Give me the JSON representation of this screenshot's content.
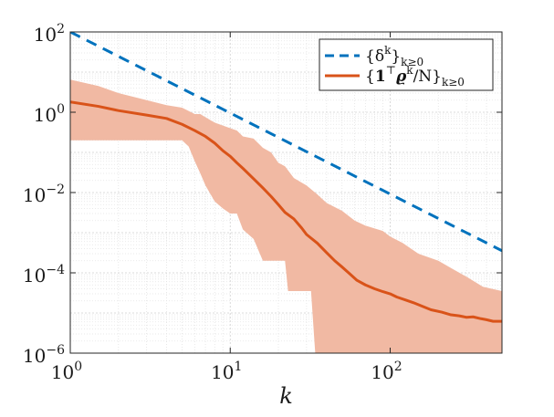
{
  "chart_data": {
    "type": "line",
    "title": "",
    "xlabel": "k",
    "ylabel": "",
    "xscale": "log",
    "yscale": "log",
    "xlim": [
      1,
      500
    ],
    "ylim": [
      1e-06,
      100
    ],
    "grid": true,
    "legend_position": "top-right",
    "x_ticks": [
      {
        "value": 1,
        "base": "10",
        "exp": "0"
      },
      {
        "value": 10,
        "base": "10",
        "exp": "1"
      },
      {
        "value": 100,
        "base": "10",
        "exp": "2"
      }
    ],
    "y_ticks": [
      {
        "value": 1e-06,
        "base": "10",
        "exp": "−6"
      },
      {
        "value": 0.0001,
        "base": "10",
        "exp": "−4"
      },
      {
        "value": 0.01,
        "base": "10",
        "exp": "−2"
      },
      {
        "value": 1,
        "base": "10",
        "exp": "0"
      },
      {
        "value": 100,
        "base": "10",
        "exp": "2"
      }
    ],
    "series": [
      {
        "name": "{δ^k}_{k≥0}",
        "style": "dashed",
        "color": "#0072BD",
        "points": [
          [
            1,
            100
          ],
          [
            500,
            0.000355
          ]
        ]
      },
      {
        "name": "{1^⊤ϱ^k/N}_{k≥0}",
        "style": "solid",
        "color": "#D95319",
        "points": [
          [
            1,
            1.8
          ],
          [
            1.5,
            1.4
          ],
          [
            2,
            1.1
          ],
          [
            3,
            0.85
          ],
          [
            4,
            0.7
          ],
          [
            5,
            0.5
          ],
          [
            6,
            0.35
          ],
          [
            7,
            0.25
          ],
          [
            8,
            0.17
          ],
          [
            9,
            0.11
          ],
          [
            10,
            0.08
          ],
          [
            11,
            0.055
          ],
          [
            12,
            0.04
          ],
          [
            14,
            0.022
          ],
          [
            16,
            0.013
          ],
          [
            18,
            0.008
          ],
          [
            20,
            0.005
          ],
          [
            22,
            0.0032
          ],
          [
            25,
            0.0022
          ],
          [
            28,
            0.0013
          ],
          [
            30,
            0.0009
          ],
          [
            35,
            0.00055
          ],
          [
            40,
            0.00032
          ],
          [
            45,
            0.0002
          ],
          [
            50,
            0.00014
          ],
          [
            55,
            0.0001
          ],
          [
            62,
            6.5e-05
          ],
          [
            70,
            5e-05
          ],
          [
            80,
            4e-05
          ],
          [
            90,
            3.4e-05
          ],
          [
            100,
            3e-05
          ],
          [
            110,
            2.5e-05
          ],
          [
            125,
            2.1e-05
          ],
          [
            140,
            1.8e-05
          ],
          [
            160,
            1.45e-05
          ],
          [
            180,
            1.2e-05
          ],
          [
            210,
            1.05e-05
          ],
          [
            240,
            9e-06
          ],
          [
            270,
            8.5e-06
          ],
          [
            300,
            7.8e-06
          ],
          [
            330,
            8e-06
          ],
          [
            370,
            7.2e-06
          ],
          [
            400,
            6.8e-06
          ],
          [
            440,
            6.2e-06
          ],
          [
            500,
            6.2e-06
          ]
        ],
        "band": {
          "color": "#F1B9A3",
          "upper": [
            [
              1,
              6.5
            ],
            [
              1.5,
              4.5
            ],
            [
              2,
              3.0
            ],
            [
              3,
              2.0
            ],
            [
              4,
              1.5
            ],
            [
              5,
              1.3
            ],
            [
              6,
              0.9
            ],
            [
              6.5,
              0.9
            ],
            [
              7,
              0.75
            ],
            [
              8,
              0.55
            ],
            [
              10,
              0.4
            ],
            [
              11,
              0.35
            ],
            [
              12,
              0.25
            ],
            [
              14,
              0.22
            ],
            [
              16,
              0.13
            ],
            [
              18,
              0.1
            ],
            [
              20,
              0.055
            ],
            [
              22,
              0.045
            ],
            [
              25,
              0.023
            ],
            [
              30,
              0.015
            ],
            [
              35,
              0.009
            ],
            [
              40,
              0.0055
            ],
            [
              50,
              0.0035
            ],
            [
              60,
              0.002
            ],
            [
              70,
              0.0015
            ],
            [
              90,
              0.0011
            ],
            [
              100,
              0.0008
            ],
            [
              120,
              0.00055
            ],
            [
              150,
              0.0003
            ],
            [
              200,
              0.0002
            ],
            [
              250,
              0.00012
            ],
            [
              300,
              8e-05
            ],
            [
              380,
              4.5e-05
            ],
            [
              500,
              3.5e-05
            ]
          ],
          "lower": [
            [
              1,
              0.2
            ],
            [
              4,
              0.2
            ],
            [
              5,
              0.2
            ],
            [
              5.5,
              0.14
            ],
            [
              6,
              0.06
            ],
            [
              6.5,
              0.03
            ],
            [
              7,
              0.015
            ],
            [
              8,
              0.006
            ],
            [
              9,
              0.004
            ],
            [
              10,
              0.003
            ],
            [
              11,
              0.003
            ],
            [
              12,
              0.0012
            ],
            [
              14,
              0.0007
            ],
            [
              16,
              0.0002
            ],
            [
              20,
              0.0002
            ],
            [
              22,
              0.0002
            ],
            [
              23,
              3.5e-05
            ],
            [
              28,
              3.5e-05
            ],
            [
              32,
              3.5e-05
            ],
            [
              34,
              1e-06
            ],
            [
              500,
              1e-06
            ]
          ]
        }
      }
    ]
  }
}
